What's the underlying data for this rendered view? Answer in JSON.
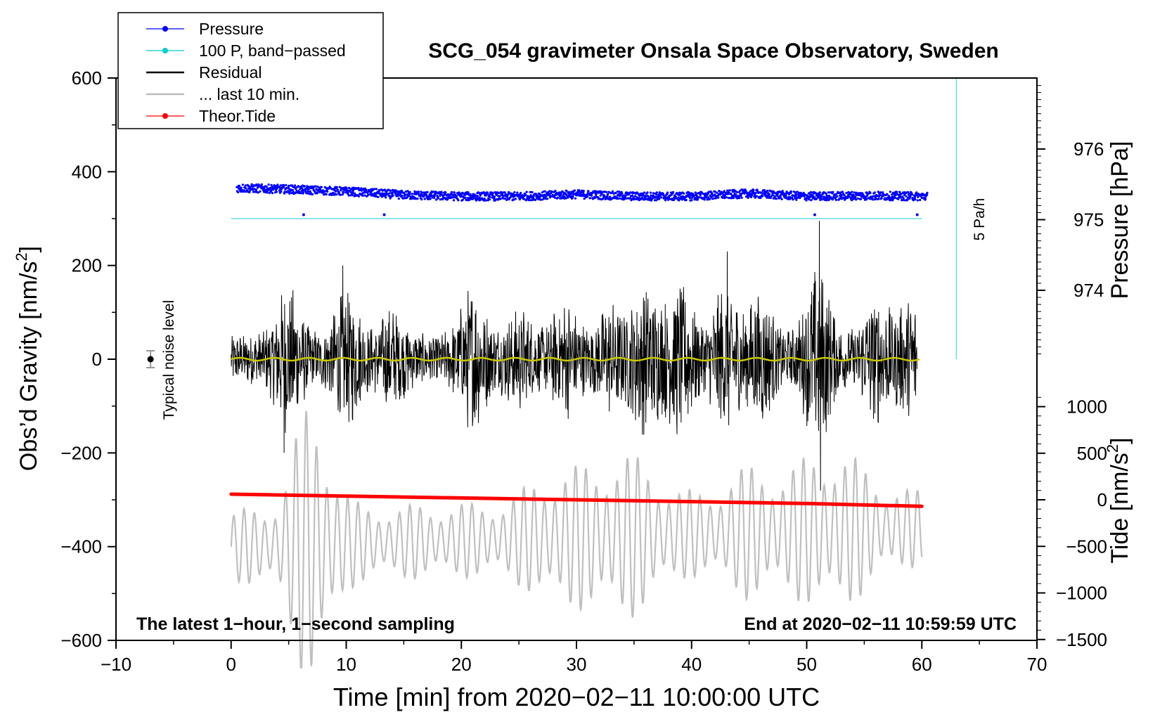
{
  "chart_data": {
    "type": "line",
    "title": "SCG_054 gravimeter Onsala Space Observatory, Sweden",
    "xlabel": "Time [min] from 2020−02−11 10:00:00 UTC",
    "ylabel_left": "Obs’d Gravity [nm/s",
    "ylabel_left_sup": "2",
    "ylabel_left_end": "]",
    "ylabel_pressure": "Pressure [hPa]",
    "ylabel_tide": "Tide [nm/s",
    "ylabel_tide_sup": "2",
    "ylabel_tide_end": "]",
    "xlim": [
      -10,
      70
    ],
    "ylim": [
      -600,
      600
    ],
    "pressure_ylim": [
      973.0,
      977.0
    ],
    "tide_ylim": [
      -1500,
      1500
    ],
    "x_ticks": [
      "−10",
      "0",
      "10",
      "20",
      "30",
      "40",
      "50",
      "60",
      "70"
    ],
    "x_tick_values": [
      -10,
      0,
      10,
      20,
      30,
      40,
      50,
      60,
      70
    ],
    "y_ticks": [
      "600",
      "400",
      "200",
      "0",
      "−200",
      "−400",
      "−600"
    ],
    "y_tick_values": [
      600,
      400,
      200,
      0,
      -200,
      -400,
      -600
    ],
    "pressure_ticks": [
      "976",
      "975",
      "974"
    ],
    "pressure_tick_values": [
      976,
      975,
      974
    ],
    "tide_ticks": [
      "1000",
      "500",
      "0",
      "−500",
      "−1000",
      "−1500"
    ],
    "tide_tick_values": [
      1000,
      500,
      0,
      -500,
      -1000,
      -1500
    ],
    "legend": [
      {
        "label": "Pressure",
        "color": "#0000ff",
        "style": "line-dot"
      },
      {
        "label": "100 P, band−passed",
        "color": "#00cccc",
        "style": "line-dot"
      },
      {
        "label": "Residual",
        "color": "#000000",
        "style": "line"
      },
      {
        "label": "... last 10 min.",
        "color": "#bbbbbb",
        "style": "line"
      },
      {
        "label": "Theor.Tide",
        "color": "#ff0000",
        "style": "line-dot"
      }
    ],
    "legend_position": "top-left",
    "series": [
      {
        "name": "Pressure",
        "unit": "hPa",
        "x": [
          0,
          5,
          10,
          15,
          20,
          25,
          30,
          35,
          40,
          45,
          50,
          55,
          60
        ],
        "values": [
          975.45,
          975.43,
          975.4,
          975.35,
          975.33,
          975.33,
          975.36,
          975.33,
          975.33,
          975.37,
          975.33,
          975.34,
          975.33
        ]
      },
      {
        "name": "100 P, band−passed",
        "x": [
          0,
          60
        ],
        "values": [
          300,
          300
        ]
      },
      {
        "name": "Residual",
        "x": [
          0,
          5,
          10,
          15,
          20,
          25,
          30,
          35,
          40,
          45,
          50,
          55,
          60
        ],
        "values": [
          0,
          0,
          0,
          0,
          0,
          0,
          0,
          0,
          0,
          0,
          0,
          0,
          0
        ],
        "peak_to_peak_approx": 320
      },
      {
        "name": "... last 10 min.",
        "x": [
          0,
          60
        ],
        "values": [
          -400,
          -360
        ]
      },
      {
        "name": "Theor.Tide",
        "unit": "nm/s2",
        "x": [
          0,
          10,
          20,
          30,
          40,
          50,
          60
        ],
        "values": [
          60,
          40,
          20,
          0,
          -20,
          -40,
          -70
        ]
      }
    ],
    "noise_marker": {
      "x": -7,
      "y": 0,
      "label": "Typical noise level"
    },
    "scale_bar_label": "5 Pa/h",
    "annotation_left": "The latest 1−hour, 1−second sampling",
    "annotation_right": "End at 2020−02−11 10:59:59 UTC"
  }
}
